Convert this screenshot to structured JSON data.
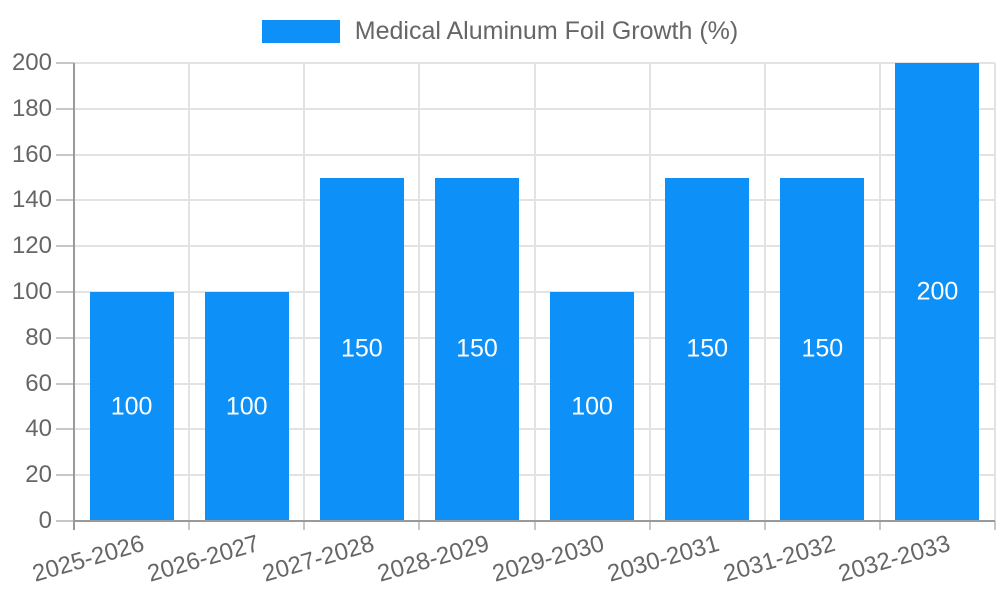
{
  "legend": {
    "label": "Medical Aluminum Foil Growth (%)"
  },
  "colors": {
    "bar": "#0d90f7",
    "bar_label": "#ffffff",
    "text": "#666666",
    "grid": "#e3e3e3",
    "axis_line": "#9a9a9a",
    "tick_mark": "#c7c7c7",
    "background": "#ffffff"
  },
  "chart_data": {
    "type": "bar",
    "title": "Medical Aluminum Foil Growth (%)",
    "legend_entries": [
      "Medical Aluminum Foil Growth (%)"
    ],
    "legend_position": "top",
    "categories": [
      "2025-2026",
      "2026-2027",
      "2027-2028",
      "2028-2029",
      "2029-2030",
      "2030-2031",
      "2031-2032",
      "2032-2033"
    ],
    "values": [
      100,
      100,
      150,
      150,
      100,
      150,
      150,
      200
    ],
    "bar_value_labels": [
      "100",
      "100",
      "150",
      "150",
      "100",
      "150",
      "150",
      "200"
    ],
    "xlabel": "",
    "ylabel": "",
    "ylim": [
      0,
      200
    ],
    "ytick_step": 20,
    "yticks": [
      0,
      20,
      40,
      60,
      80,
      100,
      120,
      140,
      160,
      180,
      200
    ],
    "grid": true,
    "x_labels_rotated": true
  }
}
